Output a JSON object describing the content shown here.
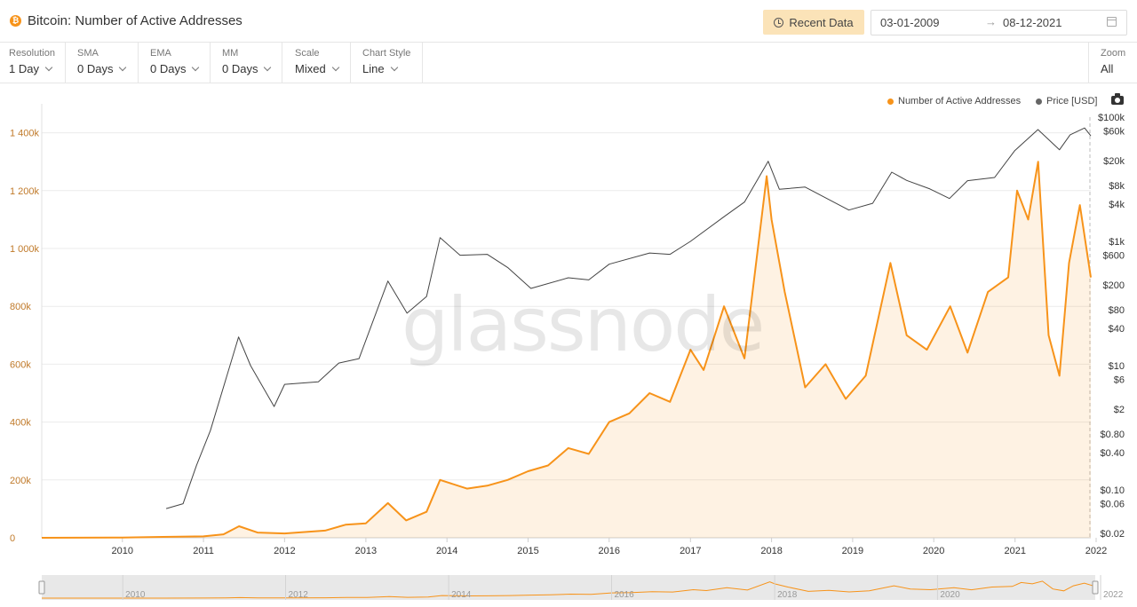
{
  "header": {
    "title": "Bitcoin: Number of Active Addresses",
    "recent_data_label": "Recent Data",
    "date_from": "03-01-2009",
    "date_arrow": "→",
    "date_to": "08-12-2021"
  },
  "controls": [
    {
      "label": "Resolution",
      "value": "1 Day"
    },
    {
      "label": "SMA",
      "value": "0 Days"
    },
    {
      "label": "EMA",
      "value": "0 Days"
    },
    {
      "label": "MM",
      "value": "0 Days"
    },
    {
      "label": "Scale",
      "value": "Mixed"
    },
    {
      "label": "Chart Style",
      "value": "Line"
    }
  ],
  "zoom": {
    "label": "Zoom",
    "value": "All"
  },
  "watermark": "glassnode",
  "colors": {
    "addresses": "#f7931a",
    "price": "#444444",
    "grid": "#ebebeb",
    "left_axis_text": "#c07a2a"
  },
  "chart_data": {
    "type": "line",
    "legend": [
      "Number of Active Addresses",
      "Price [USD]"
    ],
    "legend_position": "top-right",
    "x_ticks": [
      "2010",
      "2011",
      "2012",
      "2013",
      "2014",
      "2015",
      "2016",
      "2017",
      "2018",
      "2019",
      "2020",
      "2021",
      "2022"
    ],
    "left_axis": {
      "scale": "linear",
      "ylim": [
        0,
        1500000
      ],
      "ticks": [
        {
          "v": 0,
          "label": "0"
        },
        {
          "v": 200000,
          "label": "200k"
        },
        {
          "v": 400000,
          "label": "400k"
        },
        {
          "v": 600000,
          "label": "600k"
        },
        {
          "v": 800000,
          "label": "800k"
        },
        {
          "v": 1000000,
          "label": "1 000k"
        },
        {
          "v": 1200000,
          "label": "1 200k"
        },
        {
          "v": 1400000,
          "label": "1 400k"
        }
      ]
    },
    "right_axis": {
      "scale": "log",
      "ticks": [
        {
          "v": 100000,
          "label": "$100k"
        },
        {
          "v": 60000,
          "label": "$60k"
        },
        {
          "v": 20000,
          "label": "$20k"
        },
        {
          "v": 8000,
          "label": "$8k"
        },
        {
          "v": 4000,
          "label": "$4k"
        },
        {
          "v": 1000,
          "label": "$1k"
        },
        {
          "v": 600,
          "label": "$600"
        },
        {
          "v": 200,
          "label": "$200"
        },
        {
          "v": 80,
          "label": "$80"
        },
        {
          "v": 40,
          "label": "$40"
        },
        {
          "v": 10,
          "label": "$10"
        },
        {
          "v": 6,
          "label": "$6"
        },
        {
          "v": 2,
          "label": "$2"
        },
        {
          "v": 0.8,
          "label": "$0.80"
        },
        {
          "v": 0.4,
          "label": "$0.40"
        },
        {
          "v": 0.1,
          "label": "$0.10"
        },
        {
          "v": 0.06,
          "label": "$0.06"
        },
        {
          "v": 0.02,
          "label": "$0.02"
        }
      ]
    },
    "series": [
      {
        "name": "Number of Active Addresses",
        "axis": "left",
        "points": [
          [
            "2009-01-03",
            0
          ],
          [
            "2010-01-01",
            800
          ],
          [
            "2010-07-01",
            3000
          ],
          [
            "2011-01-01",
            5000
          ],
          [
            "2011-04-01",
            12000
          ],
          [
            "2011-06-10",
            40000
          ],
          [
            "2011-09-01",
            18000
          ],
          [
            "2012-01-01",
            15000
          ],
          [
            "2012-07-01",
            25000
          ],
          [
            "2012-10-01",
            45000
          ],
          [
            "2013-01-01",
            50000
          ],
          [
            "2013-04-10",
            120000
          ],
          [
            "2013-07-01",
            60000
          ],
          [
            "2013-10-01",
            90000
          ],
          [
            "2013-12-01",
            200000
          ],
          [
            "2014-04-01",
            170000
          ],
          [
            "2014-07-01",
            180000
          ],
          [
            "2014-10-01",
            200000
          ],
          [
            "2015-01-01",
            230000
          ],
          [
            "2015-04-01",
            250000
          ],
          [
            "2015-07-01",
            310000
          ],
          [
            "2015-10-01",
            290000
          ],
          [
            "2016-01-01",
            400000
          ],
          [
            "2016-04-01",
            430000
          ],
          [
            "2016-07-01",
            500000
          ],
          [
            "2016-10-01",
            470000
          ],
          [
            "2017-01-01",
            650000
          ],
          [
            "2017-03-01",
            580000
          ],
          [
            "2017-06-01",
            800000
          ],
          [
            "2017-09-01",
            620000
          ],
          [
            "2017-12-10",
            1250000
          ],
          [
            "2018-01-01",
            1100000
          ],
          [
            "2018-03-01",
            850000
          ],
          [
            "2018-06-01",
            520000
          ],
          [
            "2018-09-01",
            600000
          ],
          [
            "2018-12-01",
            480000
          ],
          [
            "2019-03-01",
            560000
          ],
          [
            "2019-06-20",
            950000
          ],
          [
            "2019-09-01",
            700000
          ],
          [
            "2019-12-01",
            650000
          ],
          [
            "2020-03-15",
            800000
          ],
          [
            "2020-06-01",
            640000
          ],
          [
            "2020-09-01",
            850000
          ],
          [
            "2020-12-01",
            900000
          ],
          [
            "2021-01-10",
            1200000
          ],
          [
            "2021-03-01",
            1100000
          ],
          [
            "2021-04-15",
            1300000
          ],
          [
            "2021-06-01",
            700000
          ],
          [
            "2021-07-20",
            560000
          ],
          [
            "2021-09-01",
            950000
          ],
          [
            "2021-10-20",
            1150000
          ],
          [
            "2021-12-08",
            900000
          ]
        ]
      },
      {
        "name": "Price [USD]",
        "axis": "right",
        "points": [
          [
            "2010-07-17",
            0.05
          ],
          [
            "2010-10-01",
            0.06
          ],
          [
            "2010-12-01",
            0.25
          ],
          [
            "2011-02-01",
            0.9
          ],
          [
            "2011-06-08",
            29
          ],
          [
            "2011-08-01",
            10
          ],
          [
            "2011-11-15",
            2.2
          ],
          [
            "2012-01-01",
            5
          ],
          [
            "2012-06-01",
            5.5
          ],
          [
            "2012-09-01",
            11
          ],
          [
            "2012-12-01",
            13
          ],
          [
            "2013-04-10",
            230
          ],
          [
            "2013-07-05",
            70
          ],
          [
            "2013-10-01",
            130
          ],
          [
            "2013-12-01",
            1150
          ],
          [
            "2014-03-01",
            600
          ],
          [
            "2014-07-01",
            620
          ],
          [
            "2014-10-01",
            380
          ],
          [
            "2015-01-14",
            175
          ],
          [
            "2015-07-01",
            260
          ],
          [
            "2015-10-01",
            240
          ],
          [
            "2016-01-01",
            430
          ],
          [
            "2016-07-01",
            650
          ],
          [
            "2016-10-01",
            620
          ],
          [
            "2017-01-01",
            1000
          ],
          [
            "2017-06-01",
            2500
          ],
          [
            "2017-09-01",
            4300
          ],
          [
            "2017-12-17",
            19500
          ],
          [
            "2018-02-05",
            6900
          ],
          [
            "2018-06-01",
            7500
          ],
          [
            "2018-12-15",
            3200
          ],
          [
            "2019-04-01",
            4100
          ],
          [
            "2019-06-26",
            13000
          ],
          [
            "2019-09-01",
            9600
          ],
          [
            "2019-12-15",
            7000
          ],
          [
            "2020-03-12",
            4900
          ],
          [
            "2020-06-01",
            9500
          ],
          [
            "2020-10-01",
            10700
          ],
          [
            "2020-12-31",
            29000
          ],
          [
            "2021-04-14",
            63000
          ],
          [
            "2021-07-20",
            29800
          ],
          [
            "2021-09-06",
            52000
          ],
          [
            "2021-11-10",
            67000
          ],
          [
            "2021-12-08",
            50000
          ]
        ]
      }
    ],
    "navigator": {
      "labels": [
        "2010",
        "2012",
        "2014",
        "2016",
        "2018",
        "2020",
        "2022"
      ]
    }
  }
}
